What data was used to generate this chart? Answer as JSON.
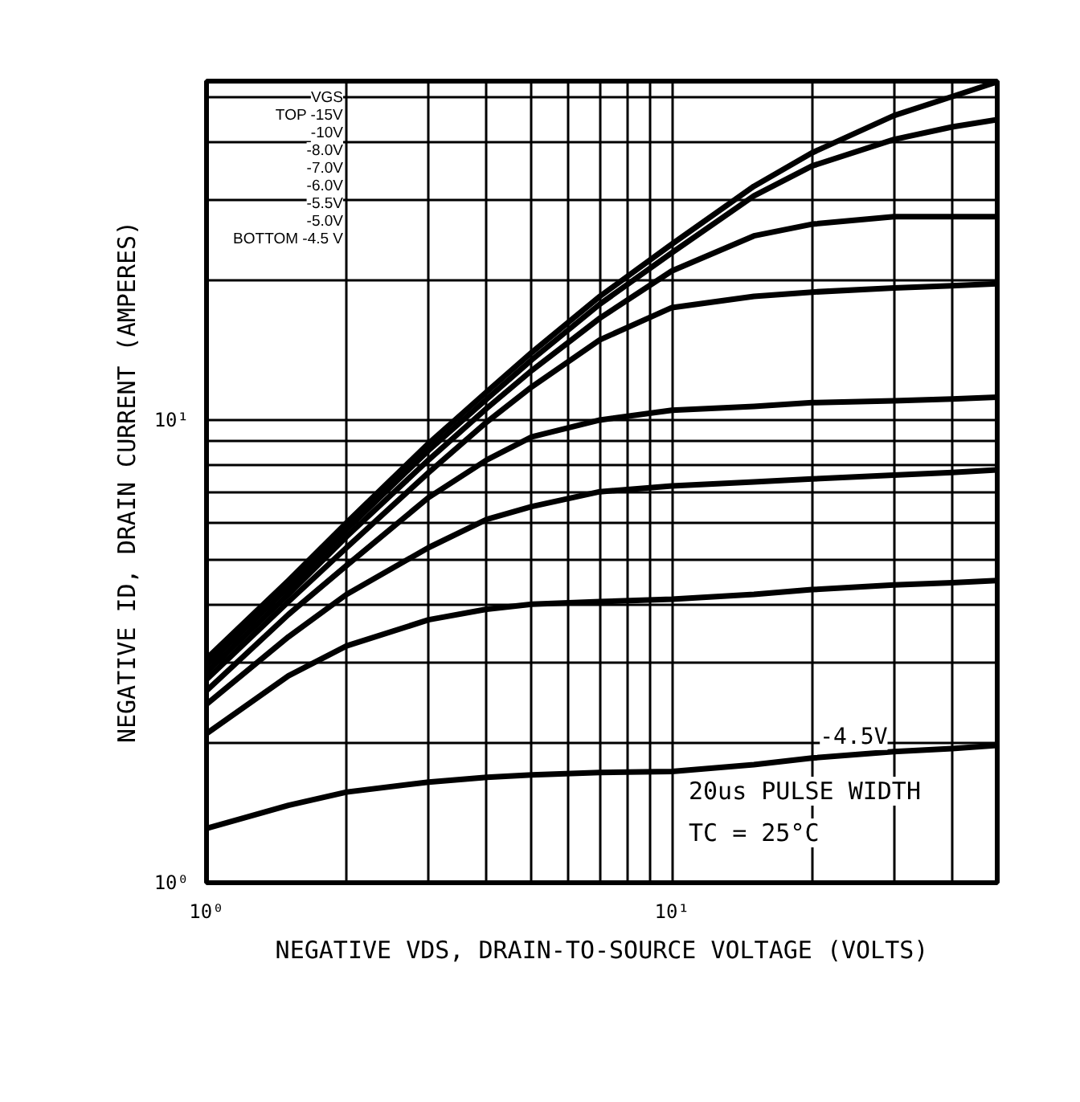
{
  "chart_data": {
    "type": "line",
    "xlabel": "NEGATIVE VDS, DRAIN-TO-SOURCE VOLTAGE (VOLTS)",
    "ylabel": "NEGATIVE ID, DRAIN CURRENT (AMPERES)",
    "log": "xy",
    "grid": true,
    "line_style": "solid",
    "marker": "none",
    "xlim": [
      1,
      50
    ],
    "ylim": [
      1,
      54
    ],
    "xticks": [
      {
        "value": 1,
        "label": "10⁰"
      },
      {
        "value": 2,
        "label": null
      },
      {
        "value": 3,
        "label": null
      },
      {
        "value": 4,
        "label": null
      },
      {
        "value": 5,
        "label": null
      },
      {
        "value": 6,
        "label": null
      },
      {
        "value": 7,
        "label": null
      },
      {
        "value": 8,
        "label": null
      },
      {
        "value": 9,
        "label": null
      },
      {
        "value": 10,
        "label": "10¹"
      },
      {
        "value": 20,
        "label": null
      },
      {
        "value": 30,
        "label": null
      },
      {
        "value": 40,
        "label": null
      }
    ],
    "yticks": [
      {
        "value": 1,
        "label": "10⁰"
      },
      {
        "value": 2,
        "label": null
      },
      {
        "value": 3,
        "label": null
      },
      {
        "value": 4,
        "label": null
      },
      {
        "value": 5,
        "label": null
      },
      {
        "value": 6,
        "label": null
      },
      {
        "value": 7,
        "label": null
      },
      {
        "value": 8,
        "label": null
      },
      {
        "value": 9,
        "label": null
      },
      {
        "value": 10,
        "label": "10¹"
      },
      {
        "value": 20,
        "label": null
      },
      {
        "value": 30,
        "label": null
      },
      {
        "value": 40,
        "label": null
      },
      {
        "value": 50,
        "label": null
      }
    ],
    "x": [
      1,
      1.5,
      2,
      3,
      4,
      5,
      7,
      10,
      15,
      20,
      30,
      40,
      50
    ],
    "series": [
      {
        "color": "#000000",
        "values": [
          3.05,
          4.5,
          6.0,
          8.9,
          11.5,
          14,
          18.5,
          24,
          32,
          37.8,
          45.5,
          50,
          53.8
        ]
      },
      {
        "color": "#000000",
        "values": [
          2.95,
          4.35,
          5.8,
          8.6,
          11.1,
          13.5,
          17.8,
          23,
          30.5,
          35.4,
          40.4,
          43,
          44.6
        ]
      },
      {
        "color": "#000000",
        "values": [
          2.85,
          4.2,
          5.6,
          8.2,
          10.6,
          12.8,
          16.6,
          21,
          25,
          26.5,
          27.5,
          27.5,
          27.5
        ]
      },
      {
        "color": "#000000",
        "values": [
          2.75,
          4.05,
          5.3,
          7.7,
          9.9,
          11.8,
          14.9,
          17.5,
          18.5,
          18.9,
          19.3,
          19.5,
          19.7
        ]
      },
      {
        "color": "#000000",
        "values": [
          2.6,
          3.8,
          4.85,
          6.8,
          8.2,
          9.2,
          10.0,
          10.5,
          10.7,
          10.9,
          11.0,
          11.1,
          11.2
        ]
      },
      {
        "color": "#000000",
        "values": [
          2.43,
          3.4,
          4.2,
          5.3,
          6.1,
          6.5,
          7.0,
          7.2,
          7.35,
          7.46,
          7.6,
          7.7,
          7.8
        ]
      },
      {
        "color": "#000000",
        "values": [
          2.1,
          2.8,
          3.25,
          3.7,
          3.9,
          4.0,
          4.05,
          4.1,
          4.2,
          4.3,
          4.4,
          4.45,
          4.5
        ]
      },
      {
        "color": "#000000",
        "values": [
          1.31,
          1.47,
          1.57,
          1.65,
          1.69,
          1.71,
          1.73,
          1.74,
          1.8,
          1.86,
          1.92,
          1.95,
          1.98
        ]
      }
    ],
    "annotations": [
      "VGS",
      "TOP -15V",
      "-10V",
      "-8.0V",
      "-7.0V",
      "-6.0V",
      "-5.5V",
      "-5.0V",
      "BOTTOM -4.5 V",
      {
        "text": "-4.5V",
        "x": 30,
        "y": 1.92
      },
      "20us PULSE WIDTH",
      "TC = 25°C"
    ]
  }
}
